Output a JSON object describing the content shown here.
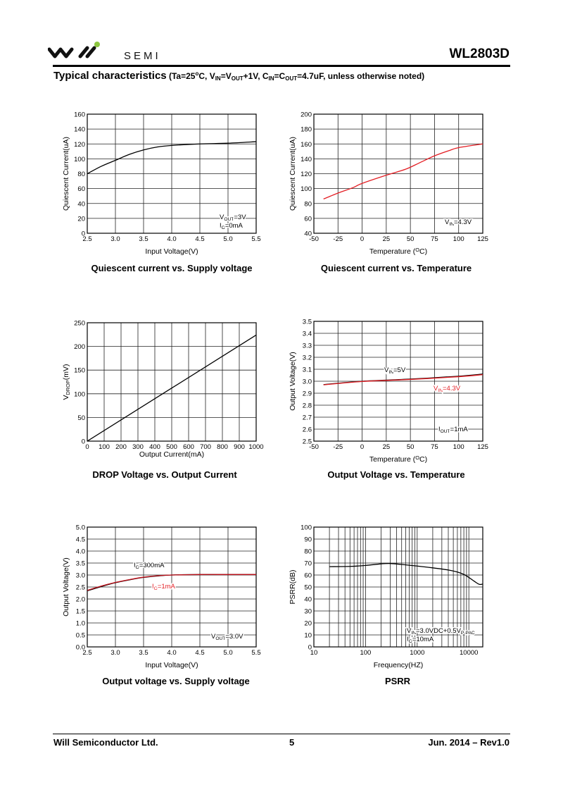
{
  "header": {
    "logo_text": "will SEMI",
    "logo_word": "SEMI",
    "part_number": "WL2803D",
    "title": "Typical characteristics",
    "conditions": [
      {
        "t": " (Ta=25"
      },
      {
        "t": "o",
        "s": "sup"
      },
      {
        "t": "C, V"
      },
      {
        "t": "IN",
        "s": "sub"
      },
      {
        "t": "=V"
      },
      {
        "t": "OUT",
        "s": "sub"
      },
      {
        "t": "+1V, C"
      },
      {
        "t": "IN",
        "s": "sub"
      },
      {
        "t": "=C"
      },
      {
        "t": "OUT",
        "s": "sub"
      },
      {
        "t": "=4.7uF, unless otherwise noted)"
      }
    ],
    "colors": {
      "logo_dot": "#8cc63f",
      "rule": "#000000"
    }
  },
  "footer": {
    "company": "Will Semiconductor Ltd.",
    "page": "5",
    "revision": "Jun. 2014 – Rev1.0"
  },
  "chart_data": [
    {
      "type": "line",
      "title": "Quiescent current vs. Supply voltage",
      "xlabel": [
        {
          "t": "Input Voltage(V)"
        }
      ],
      "ylabel": [
        {
          "t": "Quiescent Current(uA)"
        }
      ],
      "xlim": [
        2.5,
        5.5
      ],
      "ylim": [
        0,
        160
      ],
      "xticks": [
        2.5,
        3.0,
        3.5,
        4.0,
        4.5,
        5.0,
        5.5
      ],
      "xtick_labels": [
        "2.5",
        "3.0",
        "3.5",
        "4.0",
        "4.5",
        "5.0",
        "5.5"
      ],
      "yticks": [
        0,
        20,
        40,
        60,
        80,
        100,
        120,
        140,
        160
      ],
      "ytick_labels": [
        "0",
        "20",
        "40",
        "60",
        "80",
        "100",
        "120",
        "140",
        "160"
      ],
      "grid": true,
      "series": [
        {
          "name": "Quiescent current",
          "color": "#000000",
          "x": [
            2.5,
            2.75,
            3.0,
            3.25,
            3.5,
            3.75,
            4.0,
            4.5,
            5.0,
            5.5
          ],
          "y": [
            80,
            90,
            98,
            106,
            112,
            116,
            118,
            120,
            121,
            123
          ]
        }
      ],
      "annotations": [
        {
          "parts": [
            {
              "t": "V"
            },
            {
              "t": "OUT",
              "s": "sub"
            },
            {
              "t": "=3V"
            }
          ]
        },
        {
          "parts": [
            {
              "t": "I"
            },
            {
              "t": "O",
              "s": "sub"
            },
            {
              "t": "=0mA"
            }
          ]
        }
      ]
    },
    {
      "type": "line",
      "title": "Quiescent current vs. Temperature",
      "xlabel": [
        {
          "t": "Temperature ("
        },
        {
          "t": "O",
          "s": "sup"
        },
        {
          "t": "C)"
        }
      ],
      "ylabel": [
        {
          "t": "Quiescent Current(uA)"
        }
      ],
      "xlim": [
        -50,
        125
      ],
      "ylim": [
        40,
        200
      ],
      "xticks": [
        -50,
        -25,
        0,
        25,
        50,
        75,
        100,
        125
      ],
      "xtick_labels": [
        "-50",
        "-25",
        "0",
        "25",
        "50",
        "75",
        "100",
        "125"
      ],
      "yticks": [
        40,
        60,
        80,
        100,
        120,
        140,
        160,
        180,
        200
      ],
      "ytick_labels": [
        "40",
        "60",
        "80",
        "100",
        "120",
        "140",
        "160",
        "180",
        "200"
      ],
      "grid": true,
      "series": [
        {
          "name": "Quiescent current",
          "color": "#e31e24",
          "x": [
            -40,
            -25,
            -10,
            0,
            25,
            45,
            60,
            75,
            90,
            100,
            125
          ],
          "y": [
            86,
            94,
            101,
            107,
            118,
            126,
            135,
            144,
            151,
            155,
            160
          ]
        }
      ],
      "annotations": [
        {
          "parts": [
            {
              "t": "V"
            },
            {
              "t": "IN",
              "s": "sub"
            },
            {
              "t": "=4.3V"
            }
          ]
        }
      ]
    },
    {
      "type": "line",
      "title": "DROP Voltage vs. Output Current",
      "xlabel": [
        {
          "t": "Output Current(mA)"
        }
      ],
      "ylabel": [
        {
          "t": "V"
        },
        {
          "t": "DROP",
          "s": "sub"
        },
        {
          "t": "(mV)"
        }
      ],
      "xlim": [
        0,
        1000
      ],
      "ylim": [
        0,
        250
      ],
      "xticks": [
        0,
        100,
        200,
        300,
        400,
        500,
        600,
        700,
        800,
        900,
        1000
      ],
      "xtick_labels": [
        "0",
        "100",
        "200",
        "300",
        "400",
        "500",
        "600",
        "700",
        "800",
        "900",
        "1000"
      ],
      "yticks": [
        0,
        50,
        100,
        150,
        200,
        250
      ],
      "ytick_labels": [
        "0",
        "50",
        "100",
        "150",
        "200",
        "250"
      ],
      "grid": true,
      "series": [
        {
          "name": "Dropout voltage",
          "color": "#000000",
          "x": [
            0,
            1000
          ],
          "y": [
            0,
            224
          ]
        }
      ],
      "annotations": []
    },
    {
      "type": "line",
      "title": "Output Voltage vs. Temperature",
      "xlabel": [
        {
          "t": "Temperature ("
        },
        {
          "t": "O",
          "s": "sup"
        },
        {
          "t": "C)"
        }
      ],
      "ylabel": [
        {
          "t": "Output Voltage(V)"
        }
      ],
      "xlim": [
        -50,
        125
      ],
      "ylim": [
        2.5,
        3.5
      ],
      "xticks": [
        -50,
        -25,
        0,
        25,
        50,
        75,
        100,
        125
      ],
      "xtick_labels": [
        "-50",
        "-25",
        "0",
        "25",
        "50",
        "75",
        "100",
        "125"
      ],
      "yticks": [
        2.5,
        2.6,
        2.7,
        2.8,
        2.9,
        3.0,
        3.1,
        3.2,
        3.3,
        3.4,
        3.5
      ],
      "ytick_labels": [
        "2.5",
        "2.6",
        "2.7",
        "2.8",
        "2.9",
        "3.0",
        "3.1",
        "3.2",
        "3.3",
        "3.4",
        "3.5"
      ],
      "grid": true,
      "series": [
        {
          "name": "VIN=5V",
          "color": "#000000",
          "x": [
            -40,
            0,
            50,
            100,
            125
          ],
          "y": [
            2.972,
            3.0,
            3.018,
            3.042,
            3.06
          ]
        },
        {
          "name": "VIN=4.3V",
          "color": "#e31e24",
          "x": [
            -40,
            0,
            50,
            100,
            125
          ],
          "y": [
            2.97,
            2.998,
            3.015,
            3.038,
            3.055
          ]
        }
      ],
      "annotations": [
        {
          "parts": [
            {
              "t": "V"
            },
            {
              "t": "IN",
              "s": "sub"
            },
            {
              "t": "=5V"
            }
          ]
        },
        {
          "parts": [
            {
              "t": "V"
            },
            {
              "t": "IN",
              "s": "sub"
            },
            {
              "t": "=4.3V"
            }
          ],
          "color": "#e31e24"
        },
        {
          "parts": [
            {
              "t": "I"
            },
            {
              "t": "OUT",
              "s": "sub"
            },
            {
              "t": "=1mA"
            }
          ]
        }
      ]
    },
    {
      "type": "line",
      "title": "Output voltage vs. Supply voltage",
      "xlabel": [
        {
          "t": "Input Voltage(V)"
        }
      ],
      "ylabel": [
        {
          "t": "Output Voltage(V)"
        }
      ],
      "xlim": [
        2.5,
        5.5
      ],
      "ylim": [
        0,
        5.0
      ],
      "xticks": [
        2.5,
        3.0,
        3.5,
        4.0,
        4.5,
        5.0,
        5.5
      ],
      "xtick_labels": [
        "2.5",
        "3.0",
        "3.5",
        "4.0",
        "4.5",
        "5.0",
        "5.5"
      ],
      "yticks": [
        0,
        0.5,
        1.0,
        1.5,
        2.0,
        2.5,
        3.0,
        3.5,
        4.0,
        4.5,
        5.0
      ],
      "ytick_labels": [
        "0.0",
        "0.5",
        "1.0",
        "1.5",
        "2.0",
        "2.5",
        "3.0",
        "3.5",
        "4.0",
        "4.5",
        "5.0"
      ],
      "grid": true,
      "series": [
        {
          "name": "IO=300mA",
          "color": "#000000",
          "x": [
            2.5,
            2.75,
            3.0,
            3.25,
            3.5,
            3.75,
            4.0,
            4.5,
            5.0,
            5.5
          ],
          "y": [
            2.34,
            2.52,
            2.68,
            2.8,
            2.9,
            2.96,
            3.0,
            3.02,
            3.02,
            3.02
          ]
        },
        {
          "name": "IO=1mA",
          "color": "#c0101a",
          "x": [
            2.5,
            2.75,
            3.0,
            3.25,
            3.5,
            3.75,
            4.0,
            4.5,
            5.0,
            5.5
          ],
          "y": [
            2.36,
            2.54,
            2.69,
            2.81,
            2.91,
            2.97,
            3.0,
            3.02,
            3.02,
            3.02
          ]
        }
      ],
      "annotations": [
        {
          "parts": [
            {
              "t": "I"
            },
            {
              "t": "O",
              "s": "sub"
            },
            {
              "t": "=300mA"
            }
          ]
        },
        {
          "parts": [
            {
              "t": "I"
            },
            {
              "t": "O",
              "s": "sub"
            },
            {
              "t": "=1mA"
            }
          ],
          "color": "#e31e24"
        },
        {
          "parts": [
            {
              "t": "V"
            },
            {
              "t": "OUT",
              "s": "sub"
            },
            {
              "t": "=3.0V"
            }
          ]
        }
      ]
    },
    {
      "type": "line",
      "title": "PSRR",
      "xscale": "log",
      "xlabel": [
        {
          "t": "Frequency(HZ)"
        }
      ],
      "ylabel": [
        {
          "t": "PSRR(dB)"
        }
      ],
      "xlim": [
        10,
        18600
      ],
      "ylim": [
        0,
        100
      ],
      "xticks": [
        10,
        100,
        1000,
        10000
      ],
      "xtick_labels": [
        "10",
        "100",
        "1000",
        "10000"
      ],
      "yticks": [
        0,
        10,
        20,
        30,
        40,
        50,
        60,
        70,
        80,
        90,
        100
      ],
      "ytick_labels": [
        "0",
        "10",
        "20",
        "30",
        "40",
        "50",
        "60",
        "70",
        "80",
        "90",
        "100"
      ],
      "grid": true,
      "series": [
        {
          "name": "PSRR",
          "color": "#000000",
          "x": [
            20,
            50,
            100,
            200,
            300,
            500,
            1000,
            2000,
            4000,
            6000,
            8000,
            10000,
            13000,
            16000,
            18600
          ],
          "y": [
            67,
            67.2,
            68,
            69.3,
            69.6,
            68.8,
            67.5,
            66,
            64.2,
            62.5,
            60.5,
            58,
            54.5,
            52.2,
            52.5
          ]
        }
      ],
      "annotations": [
        {
          "parts": [
            {
              "t": "V"
            },
            {
              "t": "IN",
              "s": "sub"
            },
            {
              "t": "=3.0VDC+0.5V"
            },
            {
              "t": "P-PAC",
              "s": "sub"
            }
          ]
        },
        {
          "parts": [
            {
              "t": "I"
            },
            {
              "t": "O",
              "s": "sub"
            },
            {
              "t": "=10mA"
            }
          ]
        }
      ]
    }
  ]
}
